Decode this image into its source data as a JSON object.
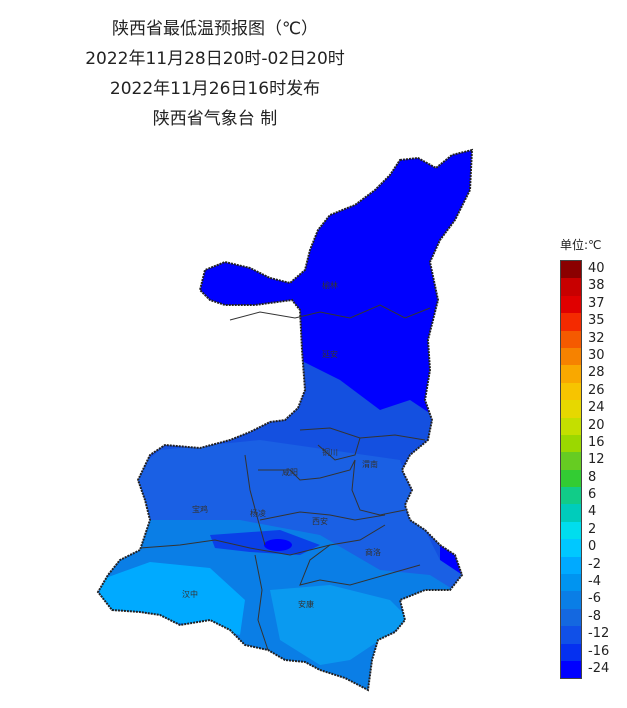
{
  "title": {
    "line1": "陕西省最低温预报图（℃）",
    "line2": "2022年11月28日20时-02日20时",
    "line3": "2022年11月26日16时发布",
    "line4": "陕西省气象台 制"
  },
  "legend": {
    "title": "单位:℃",
    "items": [
      {
        "label": "40",
        "color": "#8b0000"
      },
      {
        "label": "38",
        "color": "#c80000"
      },
      {
        "label": "37",
        "color": "#e00000"
      },
      {
        "label": "35",
        "color": "#f42a00"
      },
      {
        "label": "32",
        "color": "#f55a00"
      },
      {
        "label": "30",
        "color": "#f68200"
      },
      {
        "label": "28",
        "color": "#f9a800"
      },
      {
        "label": "26",
        "color": "#f7c400"
      },
      {
        "label": "24",
        "color": "#e6d800"
      },
      {
        "label": "20",
        "color": "#c4df00"
      },
      {
        "label": "16",
        "color": "#9bd800"
      },
      {
        "label": "12",
        "color": "#66cc22"
      },
      {
        "label": "8",
        "color": "#33cc33"
      },
      {
        "label": "6",
        "color": "#11cc88"
      },
      {
        "label": "4",
        "color": "#00ccbb"
      },
      {
        "label": "2",
        "color": "#00ddee"
      },
      {
        "label": "0",
        "color": "#00c8ff"
      },
      {
        "label": "-2",
        "color": "#00aaff"
      },
      {
        "label": "-4",
        "color": "#0094f0"
      },
      {
        "label": "-6",
        "color": "#0a7ee6"
      },
      {
        "label": "-8",
        "color": "#1468e0"
      },
      {
        "label": "-12",
        "color": "#1050e8"
      },
      {
        "label": "-16",
        "color": "#0530f0"
      },
      {
        "label": "-24",
        "color": "#0000ff"
      }
    ]
  },
  "cities": {
    "yulin": "榆林",
    "yanan": "延安",
    "tongchuan": "铜川",
    "weinan": "渭南",
    "xianyang": "咸阳",
    "baoji": "宝鸡",
    "yangling": "杨凌",
    "xian": "西安",
    "shangluo": "商洛",
    "hanzhong": "汉中",
    "ankang": "安康"
  },
  "colors": {
    "north": "#0000ff",
    "central": "#1450e0",
    "south": "#0a7ee6",
    "southwest": "#00aaff",
    "border": "#333333"
  }
}
